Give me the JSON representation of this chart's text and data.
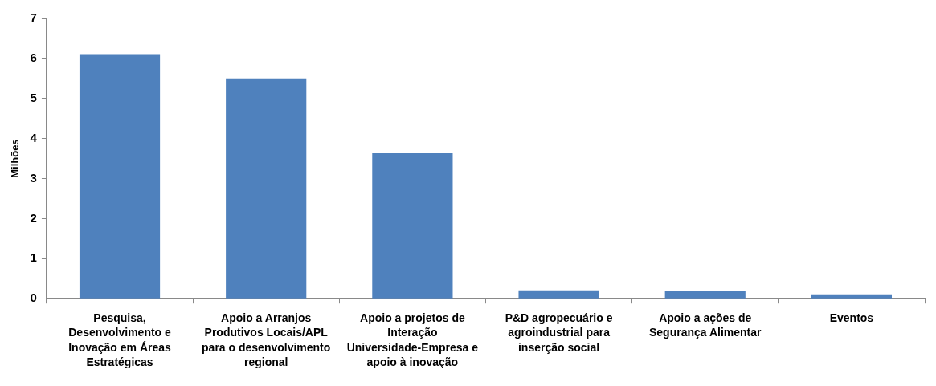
{
  "chart_data": {
    "type": "bar",
    "ylabel": "Milhões",
    "categories": [
      "Pesquisa, Desenvolvimento e Inovação em Áreas Estratégicas",
      "Apoio a Arranjos Produtivos Locais/APL para o desenvolvimento regional",
      "Apoio a projetos de Interação Universidade-Empresa e apoio à inovação",
      "P&D agropecuário e agroindustrial para inserção social",
      "Apoio a ações de Segurança Alimentar",
      "Eventos"
    ],
    "values": [
      6.11,
      5.5,
      3.63,
      0.21,
      0.2,
      0.11
    ],
    "color": "#4f81bd",
    "ylim": [
      0,
      7
    ],
    "yticks": [
      0,
      1,
      2,
      3,
      4,
      5,
      6,
      7
    ]
  }
}
